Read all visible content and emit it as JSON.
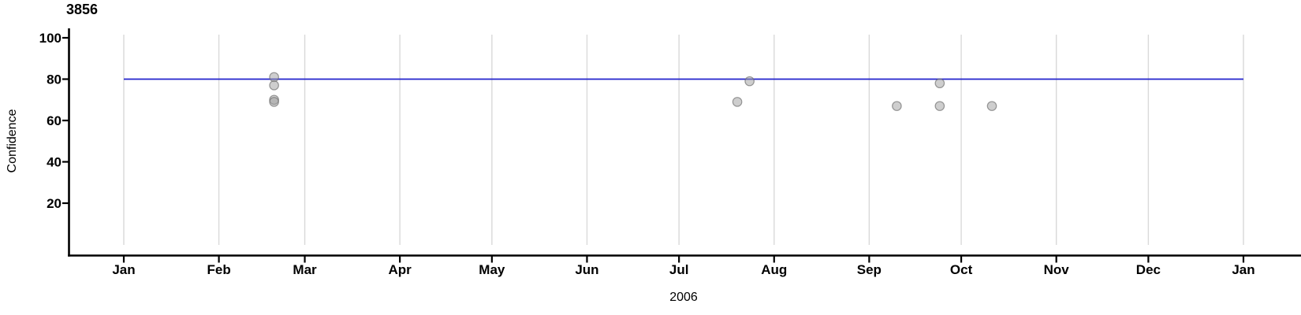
{
  "figure": {
    "title": "3856",
    "ylabel": "Confidence",
    "xlabel": "2006"
  },
  "chart_data": {
    "type": "scatter",
    "title": "3856",
    "xlabel": "2006",
    "ylabel": "Confidence",
    "x_axis": {
      "year": "2006",
      "tick_labels": [
        "Jan",
        "Feb",
        "Mar",
        "Apr",
        "May",
        "Jun",
        "Jul",
        "Aug",
        "Sep",
        "Oct",
        "Nov",
        "Dec",
        "Jan"
      ],
      "tick_day_offsets": [
        0,
        31,
        59,
        90,
        120,
        151,
        181,
        212,
        243,
        273,
        304,
        334,
        365
      ],
      "range_days": [
        0,
        365
      ],
      "grid": "vertical month gridlines"
    },
    "y_axis": {
      "ticks": [
        20,
        40,
        60,
        80,
        100
      ],
      "range": [
        0,
        100
      ],
      "grid": "none"
    },
    "reference_line": {
      "y": 80,
      "orientation": "horizontal"
    },
    "points": [
      {
        "date": "2006-02-19",
        "value": 81
      },
      {
        "date": "2006-02-19",
        "value": 77
      },
      {
        "date": "2006-02-19",
        "value": 70
      },
      {
        "date": "2006-02-19",
        "value": 69
      },
      {
        "date": "2006-07-20",
        "value": 69
      },
      {
        "date": "2006-07-24",
        "value": 79
      },
      {
        "date": "2006-09-10",
        "value": 67
      },
      {
        "date": "2006-09-24",
        "value": 78
      },
      {
        "date": "2006-09-24",
        "value": 67
      },
      {
        "date": "2006-10-11",
        "value": 67
      }
    ],
    "legend": "none",
    "colors": {
      "reference_line": "#2222cc",
      "grid": "#d9d9d9",
      "axis": "#000000",
      "point_fill": "#9e9e9e",
      "point_fill_opacity": 0.5,
      "point_stroke": "#696969",
      "point_stroke_opacity": 0.65
    }
  }
}
